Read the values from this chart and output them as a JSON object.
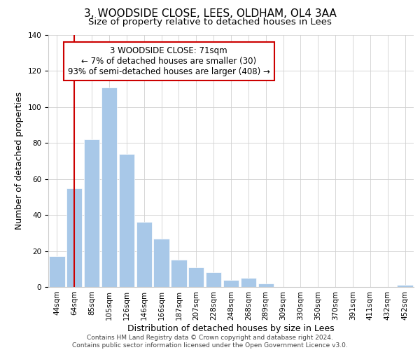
{
  "title": "3, WOODSIDE CLOSE, LEES, OLDHAM, OL4 3AA",
  "subtitle": "Size of property relative to detached houses in Lees",
  "xlabel": "Distribution of detached houses by size in Lees",
  "ylabel": "Number of detached properties",
  "footer_line1": "Contains HM Land Registry data © Crown copyright and database right 2024.",
  "footer_line2": "Contains public sector information licensed under the Open Government Licence v3.0.",
  "bar_labels": [
    "44sqm",
    "64sqm",
    "85sqm",
    "105sqm",
    "126sqm",
    "146sqm",
    "166sqm",
    "187sqm",
    "207sqm",
    "228sqm",
    "248sqm",
    "268sqm",
    "289sqm",
    "309sqm",
    "330sqm",
    "350sqm",
    "370sqm",
    "391sqm",
    "411sqm",
    "432sqm",
    "452sqm"
  ],
  "bar_values": [
    17,
    55,
    82,
    111,
    74,
    36,
    27,
    15,
    11,
    8,
    4,
    5,
    2,
    0,
    0,
    0,
    0,
    0,
    0,
    0,
    1
  ],
  "bar_color": "#a8c8e8",
  "vline_x": 1,
  "vline_color": "#cc0000",
  "ylim": [
    0,
    140
  ],
  "yticks": [
    0,
    20,
    40,
    60,
    80,
    100,
    120,
    140
  ],
  "annotation_title": "3 WOODSIDE CLOSE: 71sqm",
  "annotation_line1": "← 7% of detached houses are smaller (30)",
  "annotation_line2": "93% of semi-detached houses are larger (408) →",
  "annotation_box_color": "#ffffff",
  "annotation_box_edge_color": "#cc0000",
  "title_fontsize": 11,
  "subtitle_fontsize": 9.5,
  "axis_label_fontsize": 9,
  "tick_fontsize": 7.5,
  "annotation_fontsize": 8.5,
  "footer_fontsize": 6.5
}
